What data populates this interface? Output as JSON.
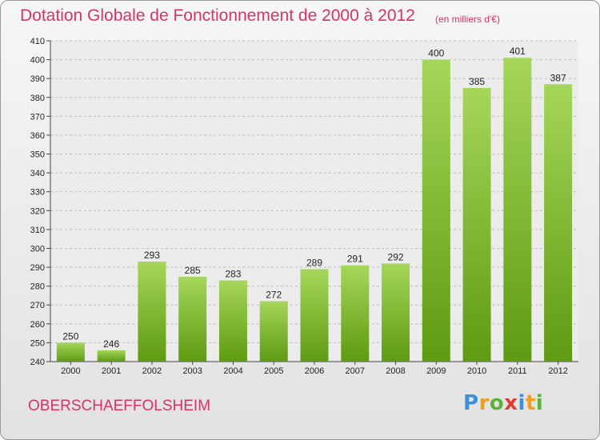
{
  "header": {
    "title": "Dotation Globale de Fonctionnement de 2000 à 2012",
    "subtitle": "(en milliers d'€)"
  },
  "footer": {
    "place": "OBERSCHAEFFOLSHEIM",
    "logo": [
      {
        "ch": "P",
        "color": "#3d8fd8"
      },
      {
        "ch": "r",
        "color": "#f0a020"
      },
      {
        "ch": "o",
        "color": "#5ab43c"
      },
      {
        "ch": "x",
        "color": "#e63a2e"
      },
      {
        "ch": "i",
        "color": "#3d8fd8"
      },
      {
        "ch": "t",
        "color": "#f0a020"
      },
      {
        "ch": "i",
        "color": "#5ab43c"
      }
    ]
  },
  "colors": {
    "title": "#d6336c",
    "bar_light": "#a6d65a",
    "bar_dark": "#5e9a12",
    "grid": "#bdbdbd"
  },
  "chart_data": {
    "type": "bar",
    "title": "Dotation Globale de Fonctionnement de 2000 à 2012",
    "subtitle": "(en milliers d'€)",
    "categories": [
      "2000",
      "2001",
      "2002",
      "2003",
      "2004",
      "2005",
      "2006",
      "2007",
      "2008",
      "2009",
      "2010",
      "2011",
      "2012"
    ],
    "values": [
      250,
      246,
      293,
      285,
      283,
      272,
      289,
      291,
      292,
      400,
      385,
      401,
      387
    ],
    "ylim": [
      240,
      410
    ],
    "yticks": [
      240,
      250,
      260,
      270,
      280,
      290,
      300,
      310,
      320,
      330,
      340,
      350,
      360,
      370,
      380,
      390,
      400,
      410
    ],
    "grid": "horizontal dashed",
    "legend": "none"
  }
}
